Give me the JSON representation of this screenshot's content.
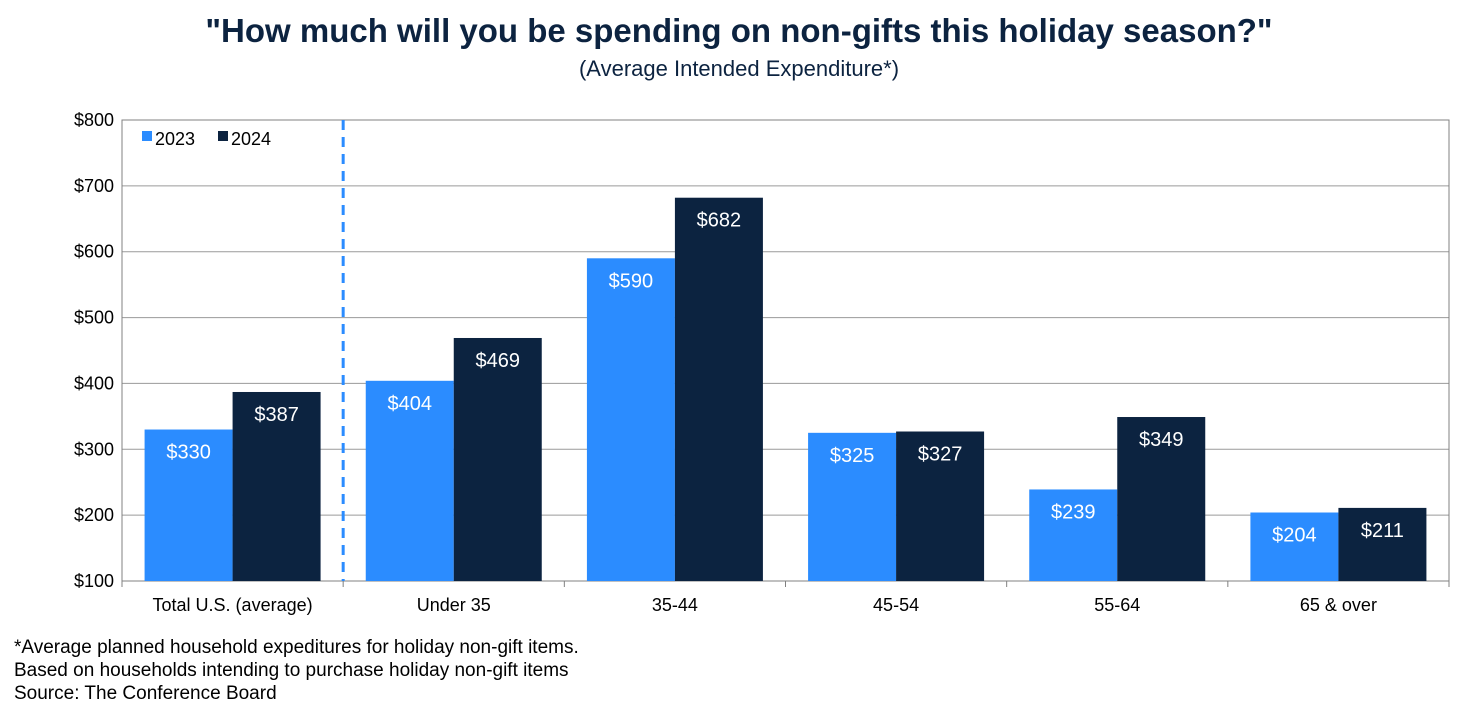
{
  "chart_data": {
    "type": "bar",
    "title": "\"How much will you be spending on non-gifts this holiday season?\"",
    "subtitle": "(Average Intended Expenditure*)",
    "categories": [
      "Total U.S. (average)",
      "Under 35",
      "35-44",
      "45-54",
      "55-64",
      "65 & over"
    ],
    "series": [
      {
        "name": "2023",
        "color": "#2b8cff",
        "values": [
          330,
          404,
          590,
          325,
          239,
          204
        ],
        "labels": [
          "$330",
          "$404",
          "$590",
          "$325",
          "$239",
          "$204"
        ]
      },
      {
        "name": "2024",
        "color": "#0c2340",
        "values": [
          387,
          469,
          682,
          327,
          349,
          211
        ],
        "labels": [
          "$387",
          "$469",
          "$682",
          "$327",
          "$349",
          "$211"
        ]
      }
    ],
    "ylim": [
      100,
      800
    ],
    "yticks": [
      800,
      700,
      600,
      500,
      400,
      300,
      200,
      100
    ],
    "ytick_labels": [
      "$800",
      "$700",
      "$600",
      "$500",
      "$400",
      "$300",
      "$200",
      "$100"
    ],
    "grid": true,
    "legend_position": "top-left",
    "separator": "dashed line after first category"
  },
  "footnotes": [
    "*Average planned household expeditures for holiday non-gift items.",
    "Based on households intending to purchase holiday non-gift items",
    "Source: The Conference Board"
  ]
}
